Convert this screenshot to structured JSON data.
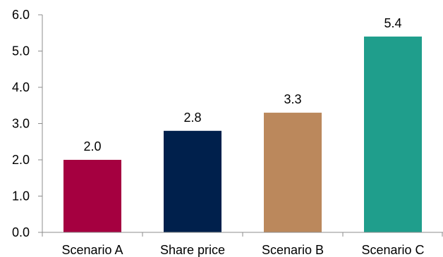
{
  "chart_data": {
    "type": "bar",
    "title": "",
    "xlabel": "",
    "ylabel": "",
    "categories": [
      "Scenario A",
      "Share price",
      "Scenario B",
      "Scenario C"
    ],
    "values": [
      2.0,
      2.8,
      3.3,
      5.4
    ],
    "value_labels": [
      "2.0",
      "2.8",
      "3.3",
      "5.4"
    ],
    "bar_colors": [
      "#a50040",
      "#00204c",
      "#bb885c",
      "#1f9e8c"
    ],
    "ylim": [
      0,
      6
    ],
    "yticks": [
      0,
      1,
      2,
      3,
      4,
      5,
      6
    ],
    "ytick_labels": [
      "0.0",
      "1.0",
      "2.0",
      "3.0",
      "4.0",
      "5.0",
      "6.0"
    ],
    "grid": false,
    "legend": "none"
  }
}
